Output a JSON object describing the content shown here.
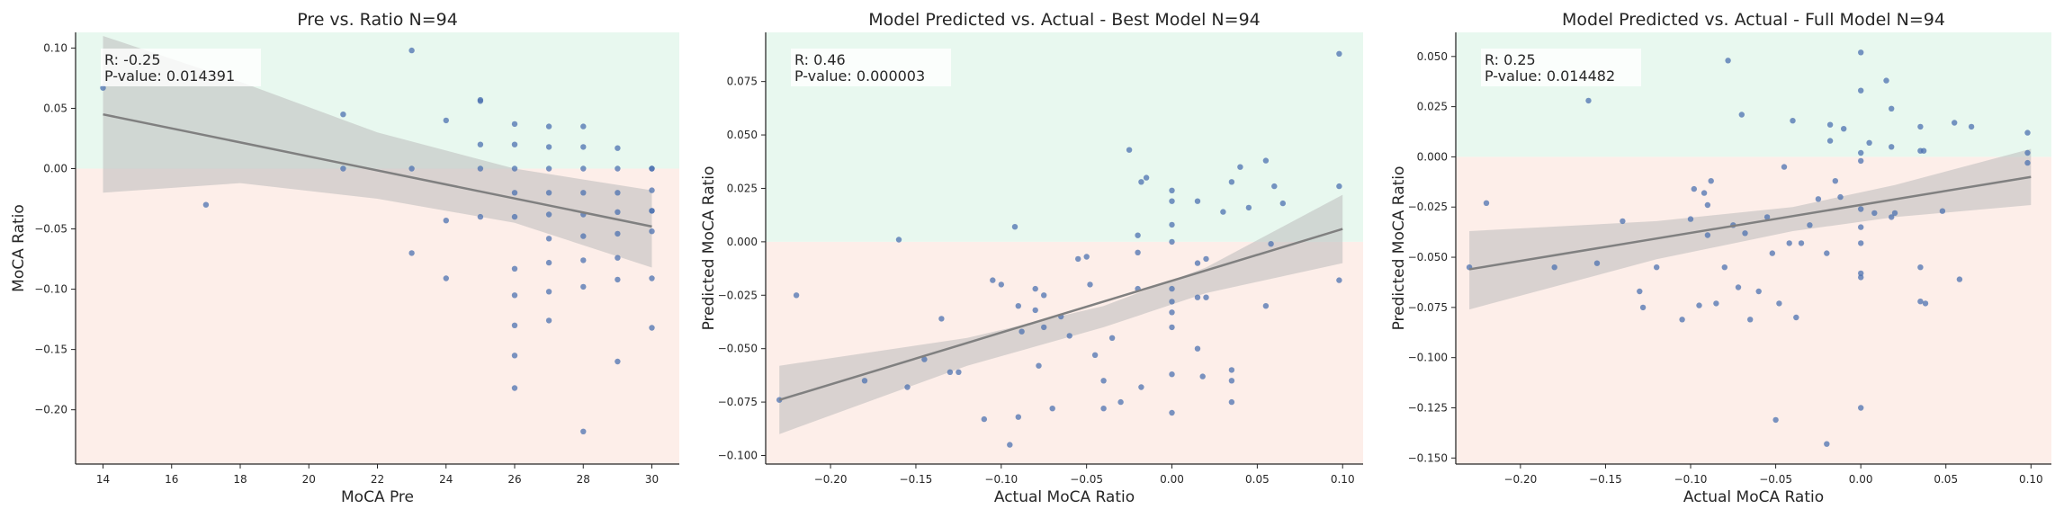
{
  "colors": {
    "positive_region": "#e8f8ef",
    "negative_region": "#fdeee9",
    "points": "#4c72b0",
    "fit_line": "#808080",
    "ci_band": "#bbbbbb"
  },
  "chart_data": [
    {
      "type": "scatter",
      "title": "Pre vs. Ratio  N=94",
      "xlabel": "MoCA Pre",
      "ylabel": "MoCA Ratio",
      "xlim": [
        13.2,
        30.8
      ],
      "ylim": [
        -0.245,
        0.113
      ],
      "xticks": [
        14,
        16,
        18,
        20,
        22,
        24,
        26,
        28,
        30
      ],
      "xtick_labels": [
        "14",
        "16",
        "18",
        "20",
        "22",
        "24",
        "26",
        "28",
        "30"
      ],
      "yticks": [
        0.1,
        0.05,
        0.0,
        -0.05,
        -0.1,
        -0.15,
        -0.2
      ],
      "ytick_labels": [
        "0.10",
        "0.05",
        "0.00",
        "−0.05",
        "−0.10",
        "−0.15",
        "−0.20"
      ],
      "annotation": [
        "R: -0.25",
        "P-value: 0.014391"
      ],
      "fit": {
        "x": [
          14,
          30
        ],
        "y": [
          0.045,
          -0.048
        ]
      },
      "ci_band": {
        "x": [
          14,
          18,
          22,
          26,
          30
        ],
        "upper": [
          0.11,
          0.072,
          0.03,
          0.0,
          -0.018
        ],
        "lower": [
          -0.02,
          -0.012,
          -0.025,
          -0.045,
          -0.082
        ]
      },
      "points": {
        "x": [
          14,
          17,
          21,
          21,
          23,
          23,
          23,
          24,
          24,
          24,
          25,
          25,
          25,
          25,
          25,
          26,
          26,
          26,
          26,
          26,
          26,
          26,
          26,
          26,
          26,
          27,
          27,
          27,
          27,
          27,
          27,
          27,
          27,
          27,
          28,
          28,
          28,
          28,
          28,
          28,
          28,
          28,
          28,
          29,
          29,
          29,
          29,
          29,
          29,
          29,
          29,
          30,
          30,
          30,
          30,
          30,
          30,
          30,
          30
        ],
        "y": [
          0.067,
          -0.03,
          0.045,
          0.0,
          0.098,
          0.0,
          -0.07,
          0.04,
          -0.043,
          -0.091,
          0.057,
          0.02,
          0.0,
          -0.04,
          0.056,
          0.037,
          0.02,
          0.0,
          -0.02,
          -0.04,
          -0.083,
          -0.105,
          -0.13,
          -0.155,
          -0.182,
          0.035,
          0.018,
          0.0,
          -0.02,
          -0.038,
          -0.058,
          -0.078,
          -0.102,
          -0.126,
          0.035,
          0.018,
          0.0,
          -0.02,
          -0.038,
          -0.056,
          -0.076,
          -0.098,
          -0.218,
          0.017,
          0.0,
          -0.02,
          -0.036,
          -0.054,
          -0.074,
          -0.092,
          -0.16,
          0.0,
          -0.018,
          -0.035,
          -0.052,
          -0.091,
          -0.132,
          0.0,
          -0.035
        ]
      }
    },
    {
      "type": "scatter",
      "title": "Model Predicted vs. Actual - Best Model  N=94",
      "xlabel": "Actual MoCA Ratio",
      "ylabel": "Predicted MoCA Ratio",
      "xlim": [
        -0.238,
        0.112
      ],
      "ylim": [
        -0.104,
        0.098
      ],
      "xticks": [
        -0.2,
        -0.15,
        -0.1,
        -0.05,
        0.0,
        0.05,
        0.1
      ],
      "xtick_labels": [
        "−0.20",
        "−0.15",
        "−0.10",
        "−0.05",
        "0.00",
        "0.05",
        "0.10"
      ],
      "yticks": [
        0.075,
        0.05,
        0.025,
        0.0,
        -0.025,
        -0.05,
        -0.075,
        -0.1
      ],
      "ytick_labels": [
        "0.075",
        "0.050",
        "0.025",
        "0.000",
        "−0.025",
        "−0.050",
        "−0.075",
        "−0.100"
      ],
      "annotation": [
        "R: 0.46",
        "P-value: 0.000003"
      ],
      "fit": {
        "x": [
          -0.23,
          0.1
        ],
        "y": [
          -0.074,
          0.006
        ]
      },
      "ci_band": {
        "x": [
          -0.23,
          -0.12,
          -0.04,
          0.02,
          0.1
        ],
        "upper": [
          -0.058,
          -0.045,
          -0.03,
          -0.012,
          0.022
        ],
        "lower": [
          -0.09,
          -0.058,
          -0.04,
          -0.024,
          -0.01
        ]
      },
      "points": {
        "x": [
          -0.23,
          -0.22,
          -0.18,
          -0.16,
          -0.155,
          -0.145,
          -0.135,
          -0.13,
          -0.125,
          -0.11,
          -0.105,
          -0.1,
          -0.095,
          -0.092,
          -0.09,
          -0.09,
          -0.088,
          -0.08,
          -0.08,
          -0.078,
          -0.075,
          -0.075,
          -0.07,
          -0.065,
          -0.06,
          -0.055,
          -0.05,
          -0.048,
          -0.045,
          -0.04,
          -0.04,
          -0.035,
          -0.03,
          -0.025,
          -0.02,
          -0.02,
          -0.02,
          -0.018,
          -0.018,
          -0.015,
          0.0,
          0.0,
          0.0,
          0.0,
          0.0,
          0.0,
          0.0,
          0.0,
          0.0,
          0.0,
          0.015,
          0.015,
          0.015,
          0.015,
          0.018,
          0.02,
          0.02,
          0.03,
          0.035,
          0.035,
          0.035,
          0.035,
          0.04,
          0.045,
          0.055,
          0.055,
          0.058,
          0.06,
          0.065,
          0.098,
          0.098,
          0.098
        ],
        "y": [
          -0.074,
          -0.025,
          -0.065,
          0.001,
          -0.068,
          -0.055,
          -0.036,
          -0.061,
          -0.061,
          -0.083,
          -0.018,
          -0.02,
          -0.095,
          0.007,
          -0.03,
          -0.082,
          -0.042,
          -0.022,
          -0.032,
          -0.058,
          -0.025,
          -0.04,
          -0.078,
          -0.035,
          -0.044,
          -0.008,
          -0.007,
          -0.02,
          -0.053,
          -0.078,
          -0.065,
          -0.045,
          -0.075,
          0.043,
          0.003,
          -0.005,
          -0.022,
          -0.068,
          0.028,
          0.03,
          0.024,
          0.019,
          0.008,
          0.0,
          -0.022,
          -0.028,
          -0.033,
          -0.04,
          -0.062,
          -0.08,
          0.019,
          -0.01,
          -0.026,
          -0.05,
          -0.063,
          -0.008,
          -0.026,
          0.014,
          0.028,
          -0.06,
          -0.065,
          -0.075,
          0.035,
          0.016,
          0.038,
          -0.03,
          -0.001,
          0.026,
          0.018,
          0.088,
          0.026,
          -0.018
        ]
      }
    },
    {
      "type": "scatter",
      "title": "Model Predicted vs. Actual - Full Model  N=94",
      "xlabel": "Actual MoCA Ratio",
      "ylabel": "Predicted MoCA Ratio",
      "xlim": [
        -0.238,
        0.112
      ],
      "ylim": [
        -0.153,
        0.062
      ],
      "xticks": [
        -0.2,
        -0.15,
        -0.1,
        -0.05,
        0.0,
        0.05,
        0.1
      ],
      "xtick_labels": [
        "−0.20",
        "−0.15",
        "−0.10",
        "−0.05",
        "0.00",
        "0.05",
        "0.10"
      ],
      "yticks": [
        0.05,
        0.025,
        0.0,
        -0.025,
        -0.05,
        -0.075,
        -0.1,
        -0.125,
        -0.15
      ],
      "ytick_labels": [
        "0.050",
        "0.025",
        "0.000",
        "−0.025",
        "−0.050",
        "−0.075",
        "−0.100",
        "−0.125",
        "−0.150"
      ],
      "annotation": [
        "R: 0.25",
        "P-value: 0.014482"
      ],
      "fit": {
        "x": [
          -0.23,
          0.1
        ],
        "y": [
          -0.056,
          -0.01
        ]
      },
      "ci_band": {
        "x": [
          -0.23,
          -0.12,
          -0.04,
          0.02,
          0.1
        ],
        "upper": [
          -0.037,
          -0.032,
          -0.025,
          -0.014,
          0.004
        ],
        "lower": [
          -0.076,
          -0.051,
          -0.037,
          -0.03,
          -0.024
        ]
      },
      "points": {
        "x": [
          -0.23,
          -0.22,
          -0.18,
          -0.16,
          -0.155,
          -0.14,
          -0.13,
          -0.128,
          -0.12,
          -0.105,
          -0.1,
          -0.098,
          -0.095,
          -0.092,
          -0.09,
          -0.09,
          -0.088,
          -0.085,
          -0.08,
          -0.078,
          -0.075,
          -0.072,
          -0.07,
          -0.068,
          -0.065,
          -0.06,
          -0.055,
          -0.052,
          -0.05,
          -0.048,
          -0.045,
          -0.042,
          -0.04,
          -0.038,
          -0.035,
          -0.03,
          -0.025,
          -0.02,
          -0.02,
          -0.018,
          -0.018,
          -0.015,
          -0.012,
          -0.01,
          0.0,
          0.0,
          0.0,
          0.0,
          0.0,
          0.0,
          0.0,
          0.0,
          0.0,
          0.0,
          0.005,
          0.008,
          0.015,
          0.018,
          0.018,
          0.018,
          0.02,
          0.035,
          0.035,
          0.035,
          0.035,
          0.037,
          0.038,
          0.048,
          0.055,
          0.058,
          0.065,
          0.098,
          0.098,
          0.098
        ],
        "y": [
          -0.055,
          -0.023,
          -0.055,
          0.028,
          -0.053,
          -0.032,
          -0.067,
          -0.075,
          -0.055,
          -0.081,
          -0.031,
          -0.016,
          -0.074,
          -0.018,
          -0.024,
          -0.039,
          -0.012,
          -0.073,
          -0.055,
          0.048,
          -0.034,
          -0.065,
          0.021,
          -0.038,
          -0.081,
          -0.067,
          -0.03,
          -0.048,
          -0.131,
          -0.073,
          -0.005,
          -0.043,
          0.018,
          -0.08,
          -0.043,
          -0.034,
          -0.021,
          -0.048,
          -0.143,
          0.016,
          0.008,
          -0.012,
          -0.02,
          0.014,
          0.052,
          0.033,
          0.002,
          -0.002,
          -0.026,
          -0.035,
          -0.043,
          -0.058,
          -0.06,
          -0.125,
          0.007,
          -0.028,
          0.038,
          0.024,
          0.005,
          -0.03,
          -0.028,
          0.015,
          0.003,
          -0.055,
          -0.072,
          0.003,
          -0.073,
          -0.027,
          0.017,
          -0.061,
          0.015,
          0.012,
          0.002,
          -0.003
        ]
      }
    }
  ]
}
